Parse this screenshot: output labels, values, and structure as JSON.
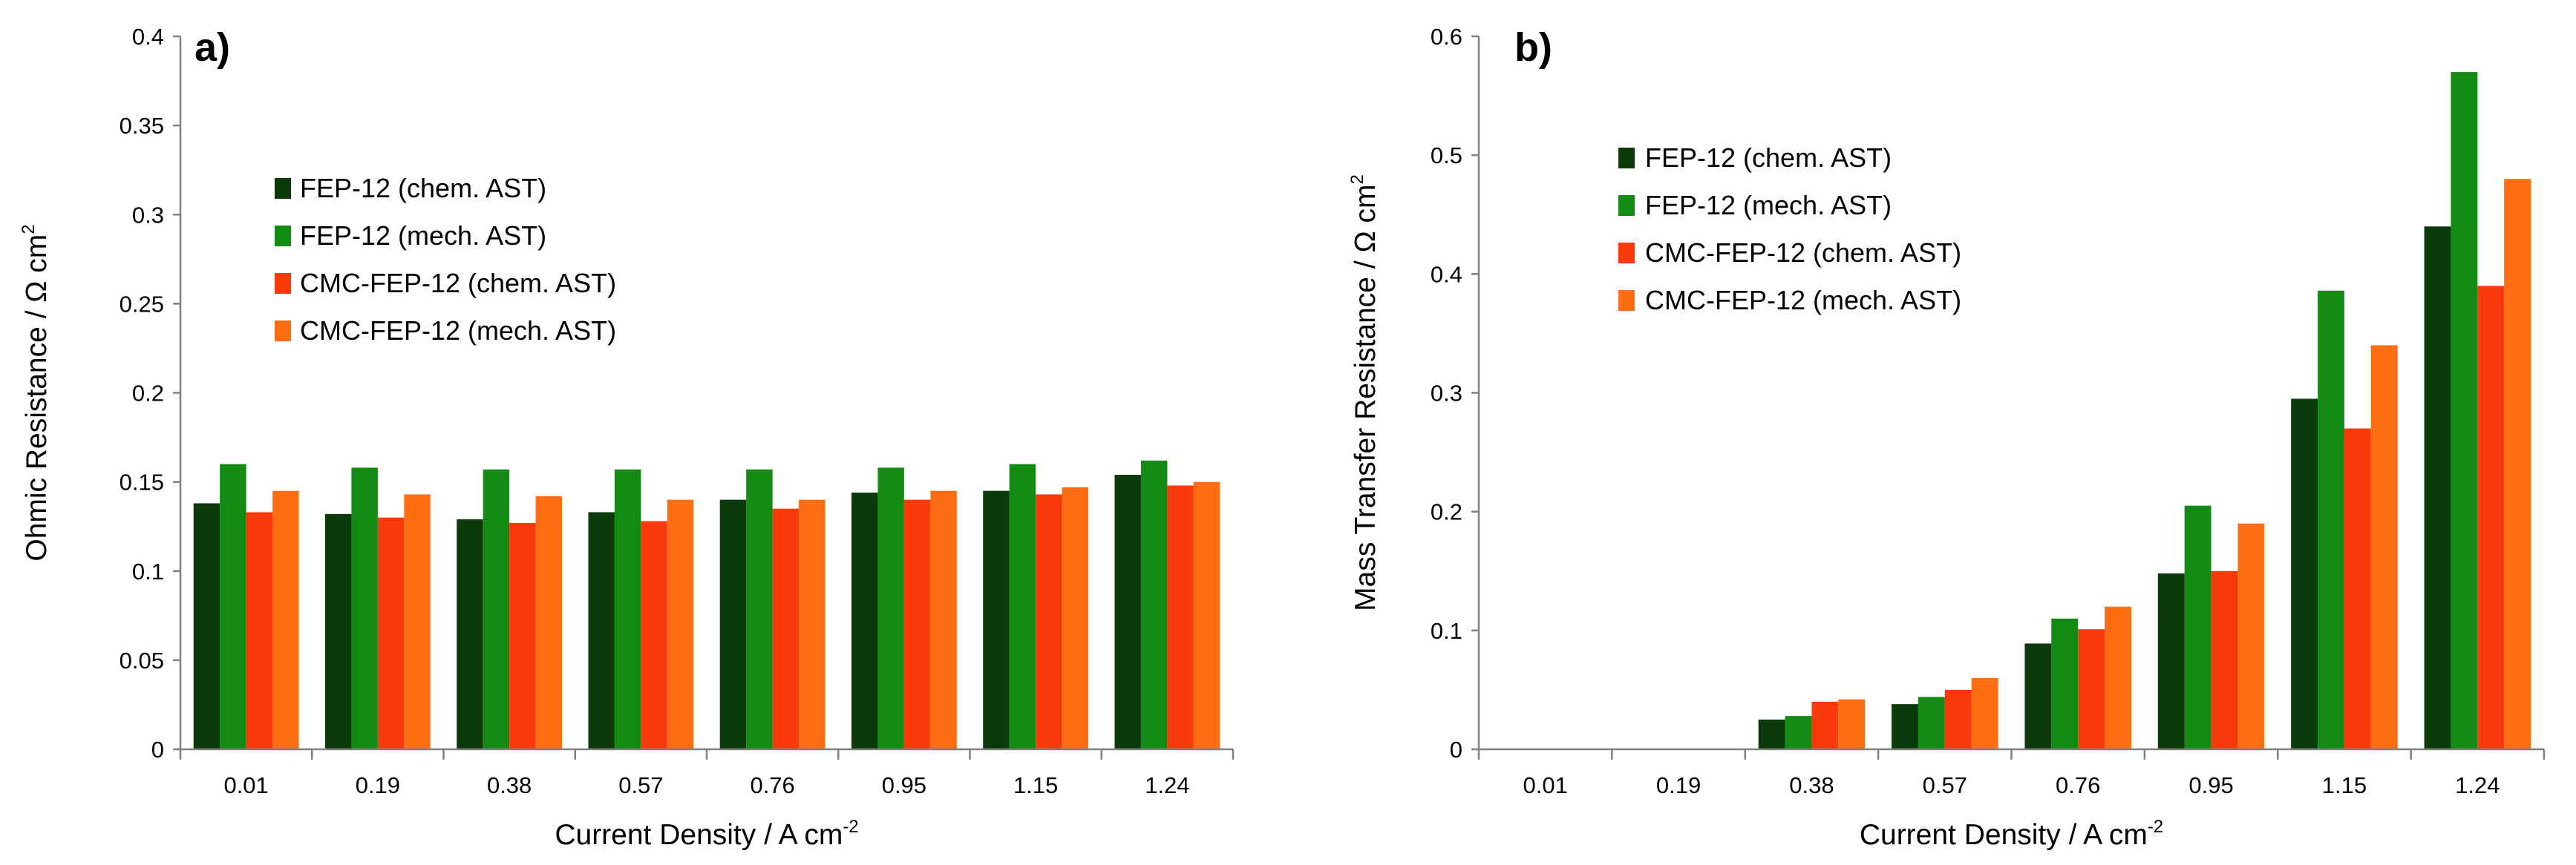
{
  "chart_data": [
    {
      "type": "bar",
      "panel_label": "a)",
      "title": "",
      "xlabel": "Current Density / A cm",
      "xlabel_sup": "-2",
      "ylabel": "Ohmic Resistance / Ω cm",
      "ylabel_sup": "2",
      "categories": [
        "0.01",
        "0.19",
        "0.38",
        "0.57",
        "0.76",
        "0.95",
        "1.15",
        "1.24"
      ],
      "ylim": [
        0,
        0.4
      ],
      "yticks": [
        "0",
        "0.05",
        "0.1",
        "0.15",
        "0.2",
        "0.25",
        "0.3",
        "0.35",
        "0.4"
      ],
      "grid": false,
      "legend_position": "upper-left",
      "series": [
        {
          "name": "FEP-12 (chem. AST)",
          "color": "#0b3a0b",
          "values": [
            0.138,
            0.132,
            0.129,
            0.133,
            0.14,
            0.144,
            0.145,
            0.154
          ]
        },
        {
          "name": "FEP-12 (mech. AST)",
          "color": "#138a13",
          "values": [
            0.16,
            0.158,
            0.157,
            0.157,
            0.157,
            0.158,
            0.16,
            0.162
          ]
        },
        {
          "name": "CMC-FEP-12 (chem. AST)",
          "color": "#fa3a0a",
          "values": [
            0.133,
            0.13,
            0.127,
            0.128,
            0.135,
            0.14,
            0.143,
            0.148
          ]
        },
        {
          "name": "CMC-FEP-12 (mech. AST)",
          "color": "#ff6e12",
          "values": [
            0.145,
            0.143,
            0.142,
            0.14,
            0.14,
            0.145,
            0.147,
            0.15
          ]
        }
      ]
    },
    {
      "type": "bar",
      "panel_label": "b)",
      "title": "",
      "xlabel": "Current Density / A cm",
      "xlabel_sup": "-2",
      "ylabel": "Mass Transfer Resistance / Ω cm",
      "ylabel_sup": "2",
      "categories": [
        "0.01",
        "0.19",
        "0.38",
        "0.57",
        "0.76",
        "0.95",
        "1.15",
        "1.24"
      ],
      "ylim": [
        0,
        0.6
      ],
      "yticks": [
        "0",
        "0.1",
        "0.2",
        "0.3",
        "0.4",
        "0.5",
        "0.6"
      ],
      "grid": false,
      "legend_position": "upper-left",
      "series": [
        {
          "name": "FEP-12 (chem. AST)",
          "color": "#0b3a0b",
          "values": [
            0,
            0,
            0.025,
            0.038,
            0.089,
            0.148,
            0.295,
            0.44
          ]
        },
        {
          "name": "FEP-12 (mech. AST)",
          "color": "#138a13",
          "values": [
            0,
            0,
            0.028,
            0.044,
            0.11,
            0.205,
            0.386,
            0.57
          ]
        },
        {
          "name": "CMC-FEP-12 (chem. AST)",
          "color": "#fa3a0a",
          "values": [
            0,
            0,
            0.04,
            0.05,
            0.101,
            0.15,
            0.27,
            0.39
          ]
        },
        {
          "name": "CMC-FEP-12 (mech. AST)",
          "color": "#ff6e12",
          "values": [
            0,
            0,
            0.042,
            0.06,
            0.12,
            0.19,
            0.34,
            0.48
          ]
        }
      ]
    }
  ]
}
